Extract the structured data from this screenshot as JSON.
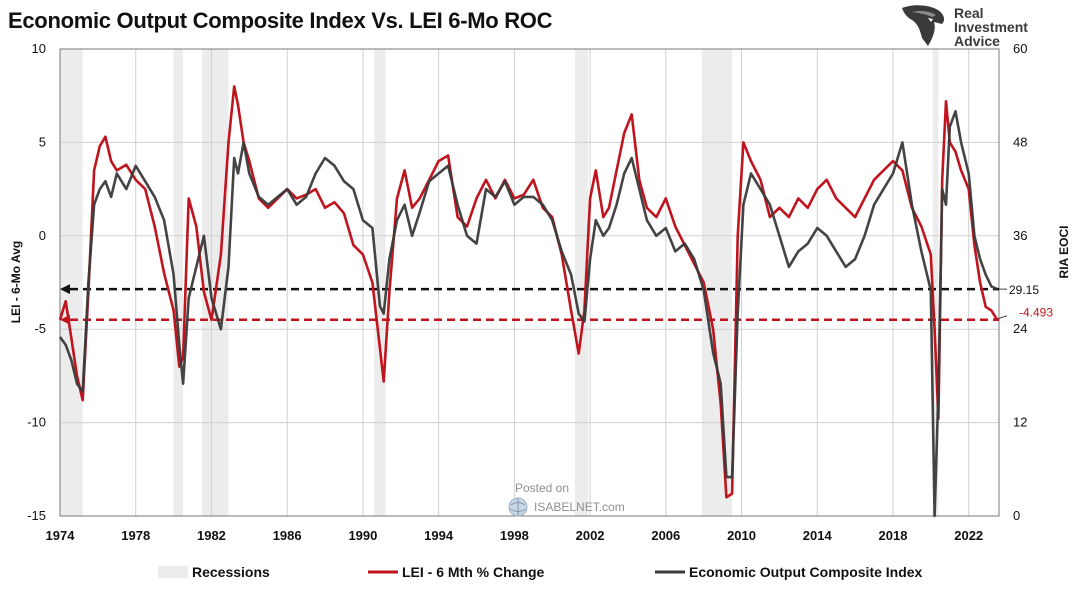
{
  "title": "Economic Output Composite Index Vs. LEI 6-Mo ROC",
  "logo": {
    "lines": [
      "Real",
      "Investment",
      "Advice"
    ],
    "icon": "eagle-head-icon"
  },
  "watermark": {
    "posted_on": "Posted on",
    "site": "ISABELNET.com",
    "icon": "globe-icon"
  },
  "colors": {
    "lei": "#c0151f",
    "eoci": "#3a3a3a",
    "recession": "#ececec",
    "grid": "#d0d0d0"
  },
  "chart_data": {
    "type": "line",
    "title": "Economic Output Composite Index Vs. LEI 6-Mo ROC",
    "ylabel": "LEI - 6-Mo Avg",
    "y2label": "RIA EOCI",
    "xlim": [
      1974,
      2023.6
    ],
    "ylim": [
      -15,
      10
    ],
    "y2lim": [
      0,
      60
    ],
    "x_ticks": [
      "1974",
      "1978",
      "1982",
      "1986",
      "1990",
      "1994",
      "1998",
      "2002",
      "2006",
      "2010",
      "2014",
      "2018",
      "2022"
    ],
    "y_ticks": [
      -15,
      -10,
      -5,
      0,
      5,
      10
    ],
    "y2_ticks": [
      0,
      12,
      24,
      36,
      48,
      60
    ],
    "grid": true,
    "legend_position": "bottom",
    "legend": [
      "Recessions",
      "LEI - 6 Mth % Change",
      "Economic Output Composite Index"
    ],
    "recessions": [
      [
        1974.0,
        1975.2
      ],
      [
        1980.0,
        1980.5
      ],
      [
        1981.5,
        1982.9
      ],
      [
        1990.6,
        1991.2
      ],
      [
        2001.2,
        2001.9
      ],
      [
        2007.9,
        2009.5
      ],
      [
        2020.1,
        2020.4
      ]
    ],
    "series": [
      {
        "name": "LEI - 6 Mth % Change",
        "axis": "left",
        "x": [
          1974.0,
          1974.3,
          1974.6,
          1974.9,
          1975.2,
          1975.5,
          1975.8,
          1976.1,
          1976.4,
          1976.7,
          1977.0,
          1977.5,
          1978.0,
          1978.5,
          1979.0,
          1979.5,
          1980.0,
          1980.3,
          1980.5,
          1980.8,
          1981.2,
          1981.6,
          1982.0,
          1982.5,
          1982.9,
          1983.2,
          1983.4,
          1983.7,
          1984.0,
          1984.5,
          1985.0,
          1985.5,
          1986.0,
          1986.5,
          1987.0,
          1987.5,
          1988.0,
          1988.5,
          1989.0,
          1989.5,
          1990.0,
          1990.5,
          1990.9,
          1991.1,
          1991.4,
          1991.8,
          1992.2,
          1992.6,
          1993.0,
          1993.5,
          1994.0,
          1994.5,
          1995.0,
          1995.5,
          1996.0,
          1996.5,
          1997.0,
          1997.5,
          1998.0,
          1998.5,
          1999.0,
          1999.5,
          2000.0,
          2000.5,
          2001.0,
          2001.4,
          2001.7,
          2002.0,
          2002.3,
          2002.7,
          2003.0,
          2003.4,
          2003.8,
          2004.2,
          2004.6,
          2005.0,
          2005.5,
          2006.0,
          2006.5,
          2007.0,
          2007.5,
          2008.0,
          2008.5,
          2008.9,
          2009.2,
          2009.5,
          2009.8,
          2010.1,
          2010.5,
          2011.0,
          2011.5,
          2012.0,
          2012.5,
          2013.0,
          2013.5,
          2014.0,
          2014.5,
          2015.0,
          2015.5,
          2016.0,
          2016.5,
          2017.0,
          2017.5,
          2018.0,
          2018.5,
          2019.0,
          2019.5,
          2020.0,
          2020.2,
          2020.4,
          2020.6,
          2020.8,
          2021.0,
          2021.3,
          2021.6,
          2022.0,
          2022.3,
          2022.6,
          2022.9,
          2023.2,
          2023.5
        ],
        "values": [
          -4.5,
          -3.5,
          -5.5,
          -7.5,
          -8.8,
          -3.0,
          3.5,
          4.8,
          5.3,
          4.0,
          3.5,
          3.8,
          3.0,
          2.5,
          0.5,
          -2.0,
          -4.0,
          -7.0,
          -6.5,
          2.0,
          0.5,
          -3.0,
          -4.5,
          -1.0,
          5.0,
          8.0,
          7.0,
          5.0,
          4.0,
          2.0,
          1.5,
          2.0,
          2.5,
          2.0,
          2.2,
          2.5,
          1.5,
          1.8,
          1.2,
          -0.5,
          -1.0,
          -2.5,
          -6.0,
          -7.8,
          -3.0,
          2.0,
          3.5,
          1.5,
          2.0,
          3.0,
          4.0,
          4.3,
          1.0,
          0.5,
          2.0,
          3.0,
          2.0,
          3.0,
          2.0,
          2.2,
          3.0,
          1.5,
          1.0,
          -1.0,
          -4.0,
          -6.3,
          -4.0,
          2.0,
          3.5,
          1.0,
          1.5,
          3.5,
          5.5,
          6.5,
          3.0,
          1.5,
          1.0,
          2.0,
          0.5,
          -0.5,
          -1.5,
          -2.5,
          -5.0,
          -9.0,
          -14.0,
          -13.8,
          0.0,
          5.0,
          4.0,
          3.0,
          1.0,
          1.5,
          1.0,
          2.0,
          1.5,
          2.5,
          3.0,
          2.0,
          1.5,
          1.0,
          2.0,
          3.0,
          3.5,
          4.0,
          3.5,
          1.5,
          0.5,
          -1.0,
          -5.0,
          -9.8,
          3.0,
          7.2,
          5.0,
          4.5,
          3.5,
          2.5,
          -0.5,
          -2.5,
          -3.8,
          -4.0,
          -4.493
        ]
      },
      {
        "name": "Economic Output Composite Index",
        "axis": "right",
        "x": [
          1974.0,
          1974.3,
          1974.6,
          1974.9,
          1975.2,
          1975.5,
          1975.8,
          1976.1,
          1976.4,
          1976.7,
          1977.0,
          1977.5,
          1978.0,
          1978.5,
          1979.0,
          1979.5,
          1980.0,
          1980.3,
          1980.5,
          1980.8,
          1981.2,
          1981.6,
          1982.0,
          1982.5,
          1982.9,
          1983.2,
          1983.4,
          1983.7,
          1984.0,
          1984.5,
          1985.0,
          1985.5,
          1986.0,
          1986.5,
          1987.0,
          1987.5,
          1988.0,
          1988.5,
          1989.0,
          1989.5,
          1990.0,
          1990.5,
          1990.9,
          1991.1,
          1991.4,
          1991.8,
          1992.2,
          1992.6,
          1993.0,
          1993.5,
          1994.0,
          1994.5,
          1995.0,
          1995.5,
          1996.0,
          1996.5,
          1997.0,
          1997.5,
          1998.0,
          1998.5,
          1999.0,
          1999.5,
          2000.0,
          2000.5,
          2001.0,
          2001.4,
          2001.7,
          2002.0,
          2002.3,
          2002.7,
          2003.0,
          2003.4,
          2003.8,
          2004.2,
          2004.6,
          2005.0,
          2005.5,
          2006.0,
          2006.5,
          2007.0,
          2007.5,
          2008.0,
          2008.5,
          2008.9,
          2009.2,
          2009.5,
          2009.8,
          2010.1,
          2010.5,
          2011.0,
          2011.5,
          2012.0,
          2012.5,
          2013.0,
          2013.5,
          2014.0,
          2014.5,
          2015.0,
          2015.5,
          2016.0,
          2016.5,
          2017.0,
          2017.5,
          2018.0,
          2018.5,
          2019.0,
          2019.5,
          2020.0,
          2020.2,
          2020.4,
          2020.6,
          2020.8,
          2021.0,
          2021.3,
          2021.6,
          2022.0,
          2022.3,
          2022.6,
          2022.9,
          2023.2,
          2023.5
        ],
        "values": [
          23,
          22,
          20,
          17,
          16,
          30,
          40,
          42,
          43,
          41,
          44,
          42,
          45,
          43,
          41,
          38,
          31,
          22,
          17,
          28,
          32,
          36,
          28,
          24,
          32,
          46,
          44,
          48,
          44,
          41,
          40,
          41,
          42,
          40,
          41,
          44,
          46,
          45,
          43,
          42,
          38,
          37,
          27,
          26,
          33,
          38,
          40,
          36,
          39,
          43,
          44,
          45,
          40,
          36,
          35,
          42,
          41,
          43,
          40,
          41,
          41,
          40,
          38,
          34,
          31,
          26,
          25,
          33,
          38,
          36,
          37,
          40,
          44,
          46,
          42,
          38,
          36,
          37,
          34,
          35,
          33,
          29,
          21,
          17,
          5,
          5,
          26,
          40,
          44,
          42,
          40,
          36,
          32,
          34,
          35,
          37,
          36,
          34,
          32,
          33,
          36,
          40,
          42,
          44,
          48,
          40,
          34,
          29,
          0,
          16,
          42,
          40,
          50,
          52,
          48,
          44,
          36,
          33,
          31,
          29.5,
          29.15
        ]
      }
    ],
    "reference_lines": [
      {
        "axis": "right",
        "value": 29.15,
        "label": "29.15",
        "style": "dashed",
        "color": "#111111"
      },
      {
        "axis": "left",
        "value": -4.493,
        "label": "-4.493",
        "style": "dashed",
        "color": "#c0151f"
      }
    ]
  }
}
